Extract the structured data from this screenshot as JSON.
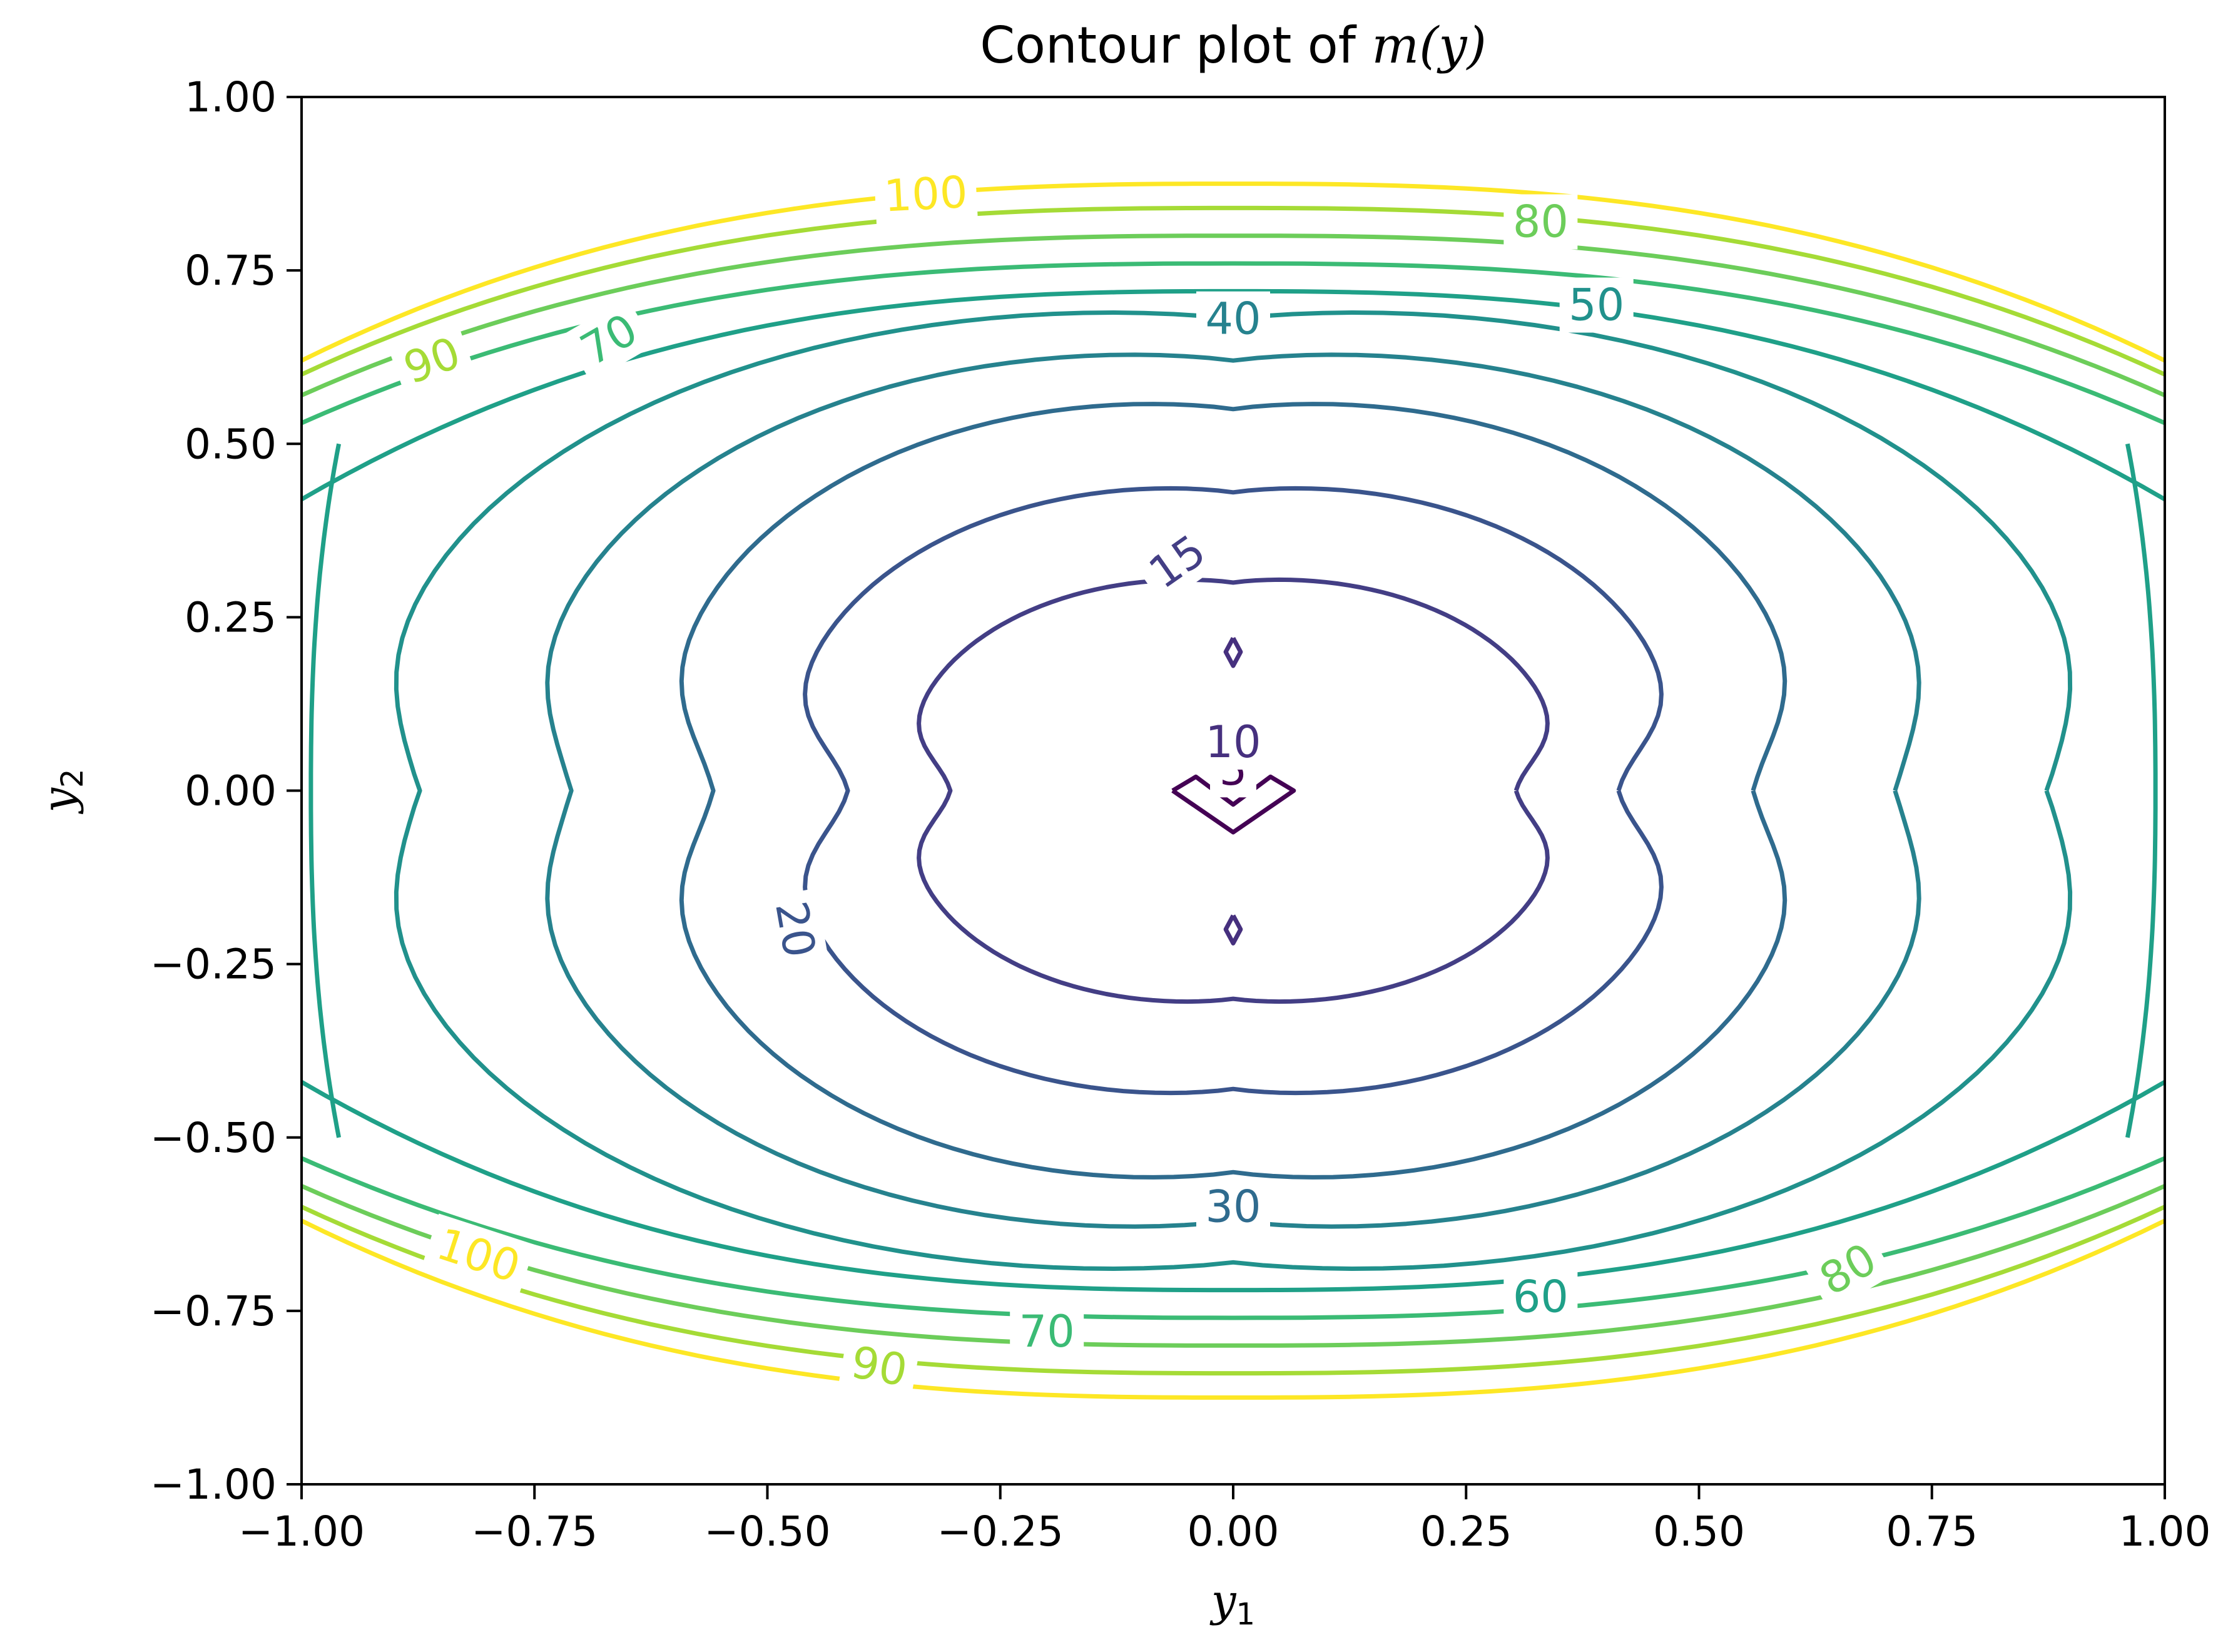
{
  "chart_data": {
    "type": "contour",
    "title": {
      "prefix": "Contour plot of ",
      "math": "m(y)"
    },
    "xlabel": {
      "main": "y",
      "sub": "1"
    },
    "ylabel": {
      "main": "y",
      "sub": "2"
    },
    "xlim": [
      -1.0,
      1.0
    ],
    "ylim": [
      -1.0,
      1.0
    ],
    "xticks": [
      "−1.00",
      "−0.75",
      "−0.50",
      "−0.25",
      "0.00",
      "0.25",
      "0.50",
      "0.75",
      "1.00"
    ],
    "yticks": [
      "−1.00",
      "−0.75",
      "−0.50",
      "−0.25",
      "0.00",
      "0.25",
      "0.50",
      "0.75",
      "1.00"
    ],
    "grid": false,
    "colormap": "viridis",
    "levels": [
      {
        "value": 5,
        "color": "#440154"
      },
      {
        "value": 10,
        "color": "#46307e"
      },
      {
        "value": 15,
        "color": "#433e85"
      },
      {
        "value": 20,
        "color": "#3a548c"
      },
      {
        "value": 30,
        "color": "#2f6b8e"
      },
      {
        "value": 40,
        "color": "#26828e"
      },
      {
        "value": 50,
        "color": "#21918c"
      },
      {
        "value": 60,
        "color": "#1fa088"
      },
      {
        "value": 70,
        "color": "#3bbb75"
      },
      {
        "value": 80,
        "color": "#6ccd5a"
      },
      {
        "value": 90,
        "color": "#a5db36"
      },
      {
        "value": 100,
        "color": "#fde725"
      }
    ],
    "contour_labels": [
      {
        "text": "5",
        "level": 5,
        "x": 0.0,
        "y": 0.03,
        "angle": 0
      },
      {
        "text": "10",
        "level": 10,
        "x": 0.0,
        "y": 0.07,
        "angle": 0
      },
      {
        "text": "15",
        "level": 15,
        "x": -0.06,
        "y": 0.33,
        "angle": -35
      },
      {
        "text": "20",
        "level": 20,
        "x": -0.47,
        "y": -0.2,
        "angle": 80
      },
      {
        "text": "30",
        "level": 30,
        "x": 0.0,
        "y": -0.6,
        "angle": 0
      },
      {
        "text": "40",
        "level": 40,
        "x": 0.0,
        "y": 0.68,
        "angle": 0
      },
      {
        "text": "50",
        "level": 50,
        "x": 0.39,
        "y": 0.7,
        "angle": 0
      },
      {
        "text": "60",
        "level": 60,
        "x": 0.33,
        "y": -0.73,
        "angle": 0
      },
      {
        "text": "70",
        "level": 70,
        "x": -0.67,
        "y": 0.65,
        "angle": -30
      },
      {
        "text": "70",
        "level": 70,
        "x": -0.2,
        "y": -0.78,
        "angle": 0
      },
      {
        "text": "80",
        "level": 80,
        "x": 0.33,
        "y": 0.82,
        "angle": 0
      },
      {
        "text": "80",
        "level": 80,
        "x": 0.66,
        "y": -0.69,
        "angle": -30
      },
      {
        "text": "90",
        "level": 90,
        "x": -0.86,
        "y": 0.62,
        "angle": -20
      },
      {
        "text": "90",
        "level": 90,
        "x": -0.38,
        "y": -0.83,
        "angle": 10
      },
      {
        "text": "100",
        "level": 100,
        "x": -0.33,
        "y": 0.86,
        "angle": -3
      },
      {
        "text": "100",
        "level": 100,
        "x": -0.81,
        "y": -0.67,
        "angle": 18
      }
    ]
  }
}
